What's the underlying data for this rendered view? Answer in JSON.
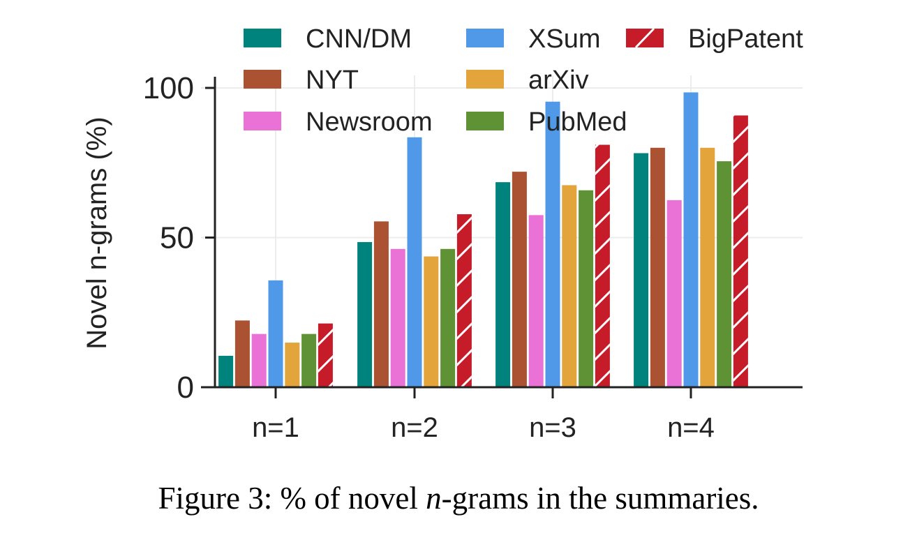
{
  "chart_data": {
    "type": "bar",
    "categories": [
      "n=1",
      "n=2",
      "n=3",
      "n=4"
    ],
    "series": [
      {
        "name": "CNN/DM",
        "color": "#00827d",
        "hatch": false,
        "values": [
          10.5,
          48.5,
          68.5,
          78.2
        ]
      },
      {
        "name": "NYT",
        "color": "#ab5233",
        "hatch": false,
        "values": [
          22.3,
          55.4,
          72.0,
          80.0
        ]
      },
      {
        "name": "Newsroom",
        "color": "#ea72d6",
        "hatch": false,
        "values": [
          17.8,
          46.2,
          57.5,
          62.5
        ]
      },
      {
        "name": "XSum",
        "color": "#5099e8",
        "hatch": false,
        "values": [
          35.7,
          83.5,
          95.4,
          98.5
        ]
      },
      {
        "name": "arXiv",
        "color": "#e3a43b",
        "hatch": false,
        "values": [
          14.9,
          43.7,
          67.5,
          80.0
        ]
      },
      {
        "name": "PubMed",
        "color": "#5f9234",
        "hatch": false,
        "values": [
          17.8,
          46.2,
          65.8,
          75.5
        ]
      },
      {
        "name": "BigPatent",
        "color": "#c61c2a",
        "hatch": true,
        "values": [
          21.3,
          57.8,
          81.0,
          90.8
        ]
      }
    ],
    "yticks": [
      0,
      50,
      100
    ],
    "ylabel": "Novel n-grams (%)",
    "xlabel": "",
    "ylim": [
      0,
      100
    ],
    "grid": true,
    "legend": "top, 3 columns"
  },
  "caption": {
    "prefix": "Figure 3: % of novel ",
    "math": "n",
    "suffix": "-grams in the summaries."
  }
}
